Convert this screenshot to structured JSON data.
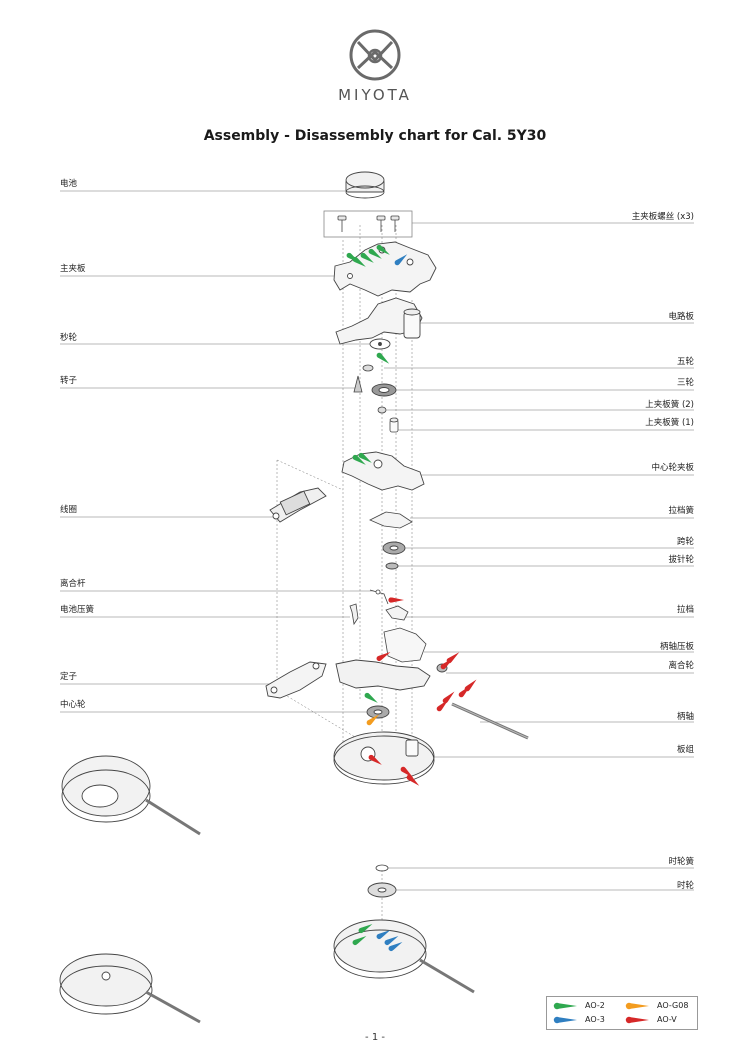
{
  "header": {
    "logo_icon": "miyota-logo-icon",
    "brand": "MIYOTA",
    "title": "Assembly - Disassembly chart for Cal. 5Y30"
  },
  "labels_left": [
    {
      "id": "battery",
      "text": "电池"
    },
    {
      "id": "main-plate",
      "text": "主夹板"
    },
    {
      "id": "second-wheel",
      "text": "秒轮"
    },
    {
      "id": "rotor",
      "text": "转子"
    },
    {
      "id": "coil",
      "text": "线圈"
    },
    {
      "id": "clutch-lever",
      "text": "离合杆"
    },
    {
      "id": "battery-spring",
      "text": "电池压簧"
    },
    {
      "id": "stator",
      "text": "定子"
    },
    {
      "id": "center-wheel",
      "text": "中心轮"
    }
  ],
  "labels_right": [
    {
      "id": "main-plate-screws",
      "text": "主夹板螺丝 (x3)"
    },
    {
      "id": "circuit-board",
      "text": "电路板"
    },
    {
      "id": "fifth-wheel",
      "text": "五轮"
    },
    {
      "id": "third-wheel",
      "text": "三轮"
    },
    {
      "id": "upper-plate-spring-2",
      "text": "上夹板簧 (2)"
    },
    {
      "id": "upper-plate-spring-1",
      "text": "上夹板簧 (1)"
    },
    {
      "id": "center-wheel-bridge",
      "text": "中心轮夹板"
    },
    {
      "id": "setting-lever-spring",
      "text": "拉档簧"
    },
    {
      "id": "minute-wheel",
      "text": "跨轮"
    },
    {
      "id": "setting-wheel",
      "text": "拔针轮"
    },
    {
      "id": "setting-lever",
      "text": "拉档"
    },
    {
      "id": "stem-holder-plate",
      "text": "柄轴压板"
    },
    {
      "id": "clutch-wheel",
      "text": "离合轮"
    },
    {
      "id": "stem",
      "text": "柄轴"
    },
    {
      "id": "plate-assembly",
      "text": "板组"
    },
    {
      "id": "hour-wheel-spring",
      "text": "时轮簧"
    },
    {
      "id": "hour-wheel",
      "text": "时轮"
    }
  ],
  "legend": {
    "items": [
      {
        "label": "AO-2",
        "color": "#2fa84f"
      },
      {
        "label": "AO-G08",
        "color": "#f39c1f"
      },
      {
        "label": "AO-3",
        "color": "#2f7fc1"
      },
      {
        "label": "AO-V",
        "color": "#d62828"
      }
    ]
  },
  "footer": {
    "page_number": "- 1 -"
  },
  "colors": {
    "line": "#555555",
    "part_fill": "#f4f4f4"
  }
}
